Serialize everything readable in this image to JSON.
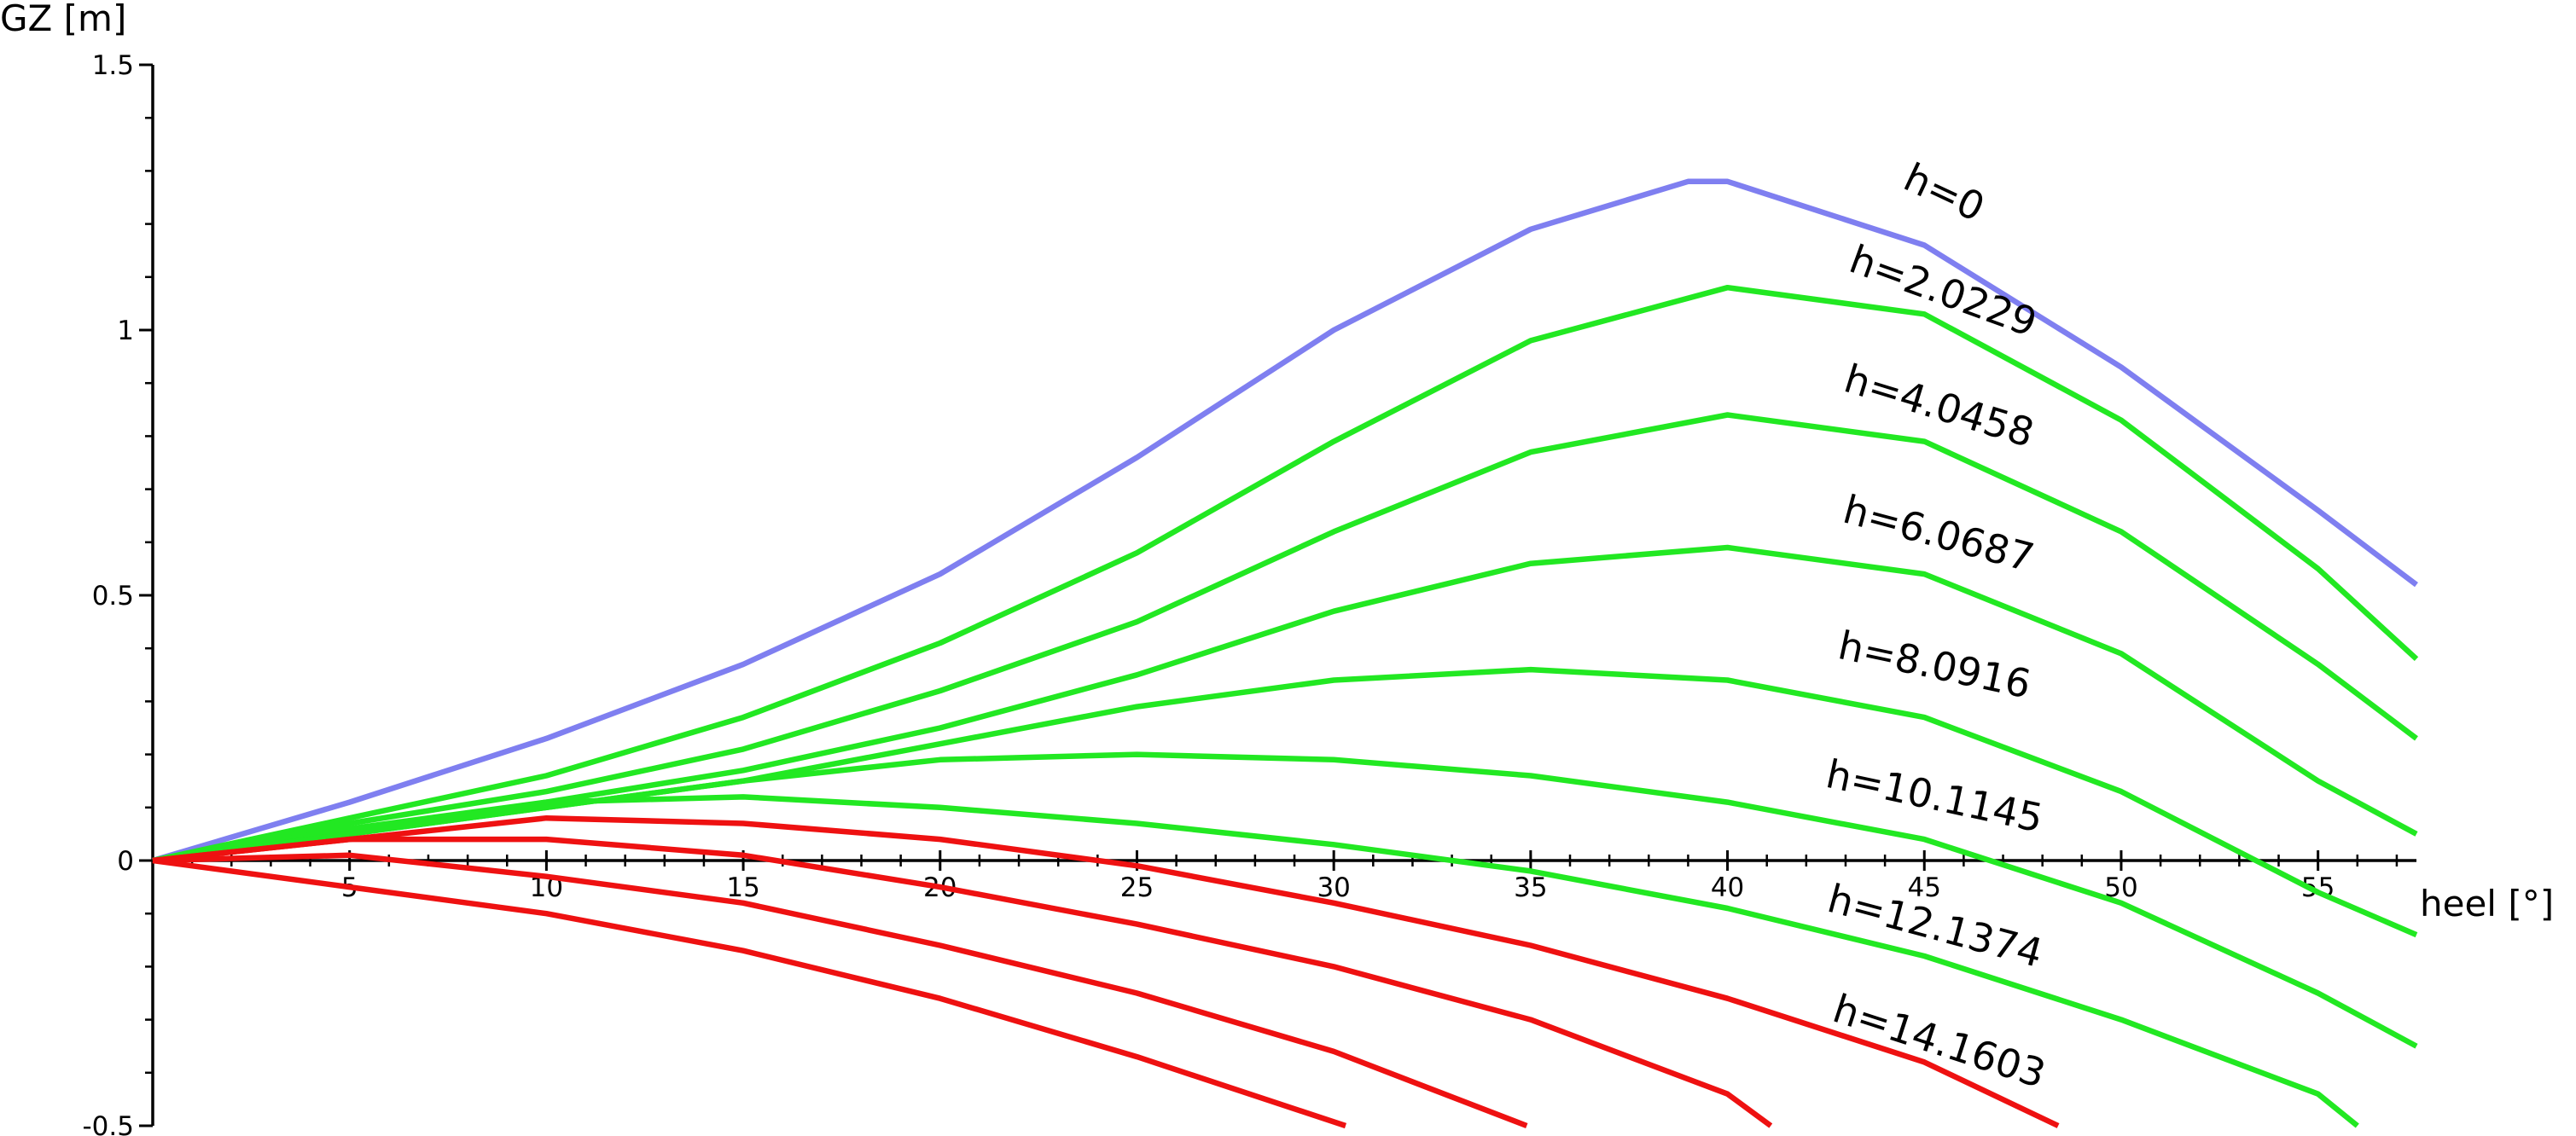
{
  "chart_data": {
    "type": "line",
    "xlabel": "heel [°]",
    "ylabel": "GZ [m]",
    "xlim": [
      0,
      57.5
    ],
    "ylim": [
      -0.5,
      1.5
    ],
    "xticks": [
      5,
      10,
      15,
      20,
      25,
      30,
      35,
      40,
      45,
      50,
      55
    ],
    "yticks": [
      -0.5,
      0,
      0.5,
      1,
      1.5
    ],
    "series": [
      {
        "name": "h=0",
        "color": "#7f7ff0",
        "x": [
          0,
          5,
          10,
          15,
          20,
          25,
          30,
          35,
          39,
          40,
          45,
          50,
          55,
          57.5
        ],
        "values": [
          0,
          0.11,
          0.23,
          0.37,
          0.54,
          0.76,
          1.0,
          1.19,
          1.28,
          1.28,
          1.16,
          0.93,
          0.66,
          0.52
        ]
      },
      {
        "name": "h=2.0229",
        "color": "#22e822",
        "x": [
          0,
          5,
          10,
          15,
          20,
          25,
          30,
          35,
          40,
          45,
          50,
          55,
          57.5
        ],
        "values": [
          0,
          0.08,
          0.16,
          0.27,
          0.41,
          0.58,
          0.79,
          0.98,
          1.08,
          1.03,
          0.83,
          0.55,
          0.38
        ]
      },
      {
        "name": "h=4.0458",
        "color": "#22e822",
        "x": [
          0,
          5,
          10,
          15,
          20,
          25,
          30,
          35,
          40,
          45,
          50,
          55,
          57.5
        ],
        "values": [
          0,
          0.07,
          0.13,
          0.21,
          0.32,
          0.45,
          0.62,
          0.77,
          0.84,
          0.79,
          0.62,
          0.37,
          0.23
        ]
      },
      {
        "name": "h=6.0687",
        "color": "#22e822",
        "x": [
          0,
          5,
          10,
          15,
          20,
          25,
          30,
          35,
          40,
          45,
          50,
          55,
          57.5
        ],
        "values": [
          0,
          0.06,
          0.11,
          0.17,
          0.25,
          0.35,
          0.47,
          0.56,
          0.59,
          0.54,
          0.39,
          0.15,
          0.05
        ]
      },
      {
        "name": "h=8.0916",
        "color": "#22e822",
        "x": [
          0,
          5,
          10,
          15,
          20,
          25,
          30,
          35,
          40,
          45,
          50,
          55,
          57.5
        ],
        "values": [
          0,
          0.05,
          0.1,
          0.15,
          0.22,
          0.29,
          0.34,
          0.36,
          0.34,
          0.27,
          0.13,
          -0.06,
          -0.14
        ]
      },
      {
        "name": "h=10.1145",
        "color": "#22e822",
        "x": [
          0,
          5,
          10,
          15,
          20,
          25,
          30,
          35,
          40,
          45,
          50,
          55,
          57.5
        ],
        "values": [
          0,
          0.05,
          0.1,
          0.15,
          0.19,
          0.2,
          0.19,
          0.16,
          0.11,
          0.04,
          -0.08,
          -0.25,
          -0.35
        ]
      },
      {
        "name": "h=12.1374",
        "color": "#22e822",
        "x": [
          0,
          5,
          10,
          15,
          20,
          25,
          30,
          35,
          40,
          45,
          50,
          55,
          56
        ],
        "values": [
          0,
          0.05,
          0.11,
          0.12,
          0.1,
          0.07,
          0.03,
          -0.02,
          -0.09,
          -0.18,
          -0.3,
          -0.44,
          -0.5
        ]
      },
      {
        "name": "h=14.1603",
        "color": "#ee1111",
        "x": [
          0,
          5,
          10,
          15,
          20,
          25,
          30,
          35,
          40,
          45,
          48.4
        ],
        "values": [
          0,
          0.04,
          0.08,
          0.07,
          0.04,
          -0.01,
          -0.08,
          -0.16,
          -0.26,
          -0.38,
          -0.5
        ]
      },
      {
        "color": "#ee1111",
        "x": [
          0,
          5,
          10,
          15,
          20,
          25,
          30,
          35,
          40,
          41.1
        ],
        "values": [
          0,
          0.04,
          0.04,
          0.01,
          -0.05,
          -0.12,
          -0.2,
          -0.3,
          -0.44,
          -0.5
        ]
      },
      {
        "color": "#ee1111",
        "x": [
          0,
          5,
          10,
          15,
          20,
          25,
          30,
          34.9
        ],
        "values": [
          0,
          0.01,
          -0.03,
          -0.08,
          -0.16,
          -0.25,
          -0.36,
          -0.5
        ]
      },
      {
        "color": "#ee1111",
        "x": [
          0,
          5,
          10,
          15,
          20,
          25,
          30.3
        ],
        "values": [
          0,
          -0.05,
          -0.1,
          -0.17,
          -0.26,
          -0.37,
          -0.5
        ]
      }
    ]
  }
}
